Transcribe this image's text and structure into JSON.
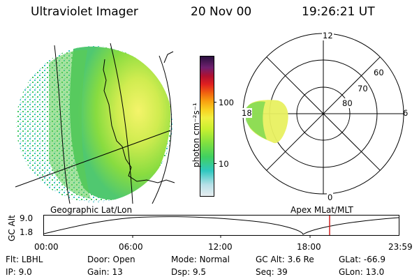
{
  "header": {
    "instrument": "Ultraviolet Imager",
    "date": "20 Nov 00",
    "time": "19:26:21 UT"
  },
  "colorbar": {
    "unit_label": "photon cm⁻²s⁻¹",
    "ticks": [
      "100",
      "10"
    ],
    "log_scale": true,
    "colors": [
      "#e8eef0",
      "#b8e0e8",
      "#30c8c0",
      "#40d060",
      "#80e040",
      "#c8f030",
      "#f0f040",
      "#f8d020",
      "#f8a010",
      "#f06010",
      "#e02020",
      "#b01030",
      "#702070",
      "#2a1040"
    ]
  },
  "left_image": {
    "caption": "Geographic Lat/Lon",
    "colors": {
      "dim": "#40c0a0",
      "mid": "#70d840",
      "bright": "#d8f060",
      "peak": "#f0f060"
    }
  },
  "polar_plot": {
    "caption": "Apex MLat/MLT",
    "lat_labels": [
      "60",
      "70",
      "80"
    ],
    "mlt_labels": {
      "top": "12",
      "right": "6",
      "bottom": "0",
      "left": "18"
    }
  },
  "altitude_track": {
    "ylabel": "GC Alt",
    "y_ticks": [
      "9.0",
      "1.8"
    ],
    "x_ticks": [
      "00:00",
      "06:00",
      "12:00",
      "18:00",
      "23:59"
    ],
    "marker_color": "#d02020"
  },
  "status": {
    "row1": [
      {
        "label": "Flt:",
        "value": "LBHL"
      },
      {
        "label": "Door:",
        "value": "Open"
      },
      {
        "label": "Mode:",
        "value": "Normal"
      },
      {
        "label": "GC Alt:",
        "value": "3.6 Re"
      },
      {
        "label": "GLat:",
        "value": "-66.9"
      }
    ],
    "row2": [
      {
        "label": "IP:",
        "value": "9.0"
      },
      {
        "label": "Gain:",
        "value": "13"
      },
      {
        "label": "Dsp:",
        "value": "9.5"
      },
      {
        "label": "Seq:",
        "value": "39"
      },
      {
        "label": "GLon:",
        "value": "13.0"
      }
    ]
  }
}
